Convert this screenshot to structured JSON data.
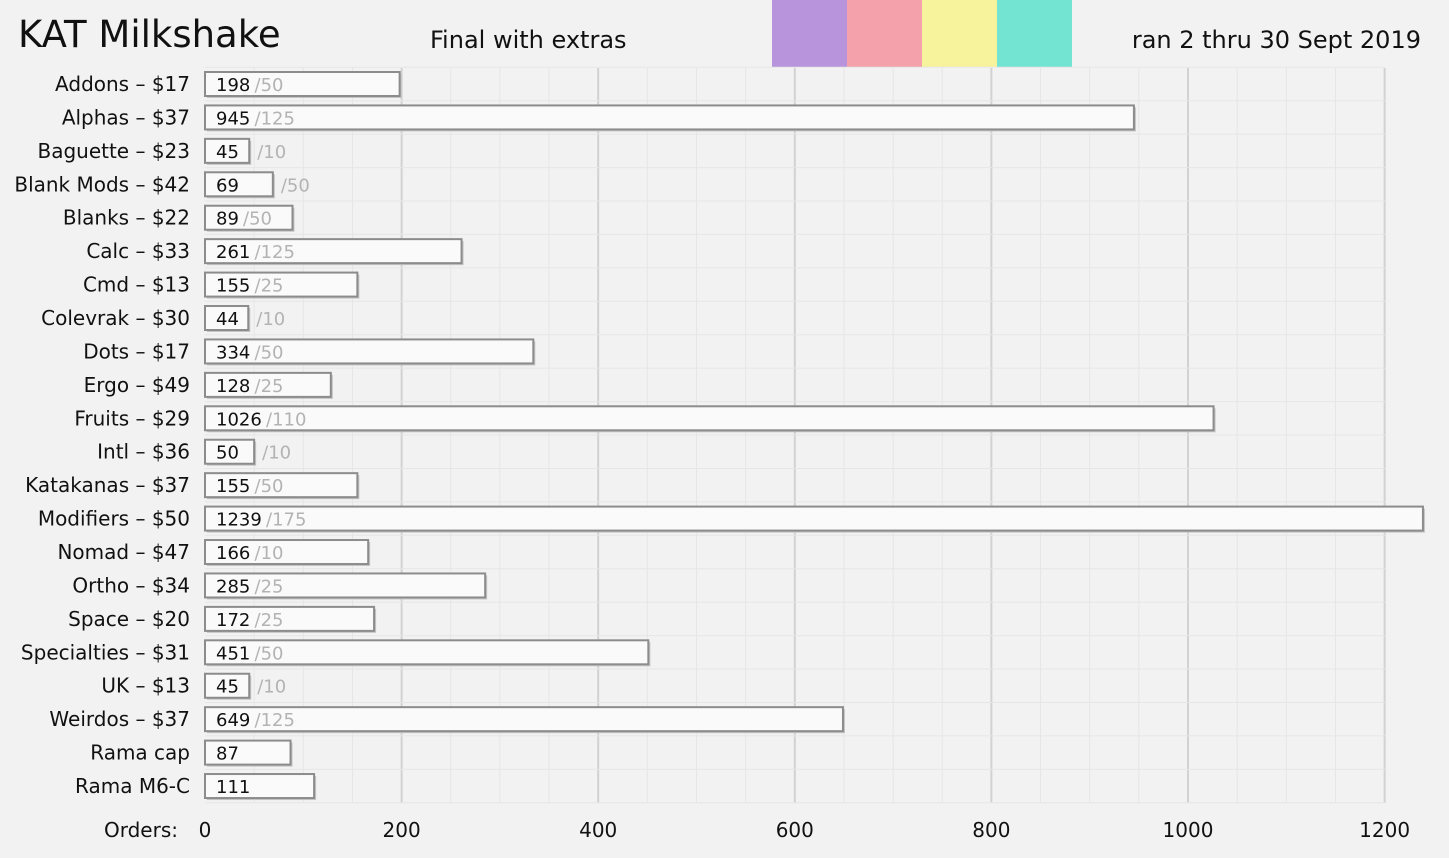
{
  "header": {
    "title": "KAT Milkshake",
    "subtitle": "Final with extras",
    "date_range": "ran 2 thru 30 Sept 2019",
    "swatches": [
      "#b794db",
      "#f4a1ab",
      "#f7f39d",
      "#74e4d2"
    ]
  },
  "chart_data": {
    "type": "bar",
    "orientation": "horizontal",
    "title": "KAT Milkshake",
    "subtitle": "Final with extras",
    "xlabel": "Orders:",
    "xlim": [
      0,
      1250
    ],
    "xticks": [
      0,
      200,
      400,
      600,
      800,
      1000,
      1200
    ],
    "grid": true,
    "categories": [
      "Addons – $17",
      "Alphas – $37",
      "Baguette – $23",
      "Blank Mods – $42",
      "Blanks – $22",
      "Calc – $33",
      "Cmd – $13",
      "Colevrak – $30",
      "Dots – $17",
      "Ergo – $49",
      "Fruits – $29",
      "Intl – $36",
      "Katakanas – $37",
      "Modifiers – $50",
      "Nomad – $47",
      "Ortho – $34",
      "Space – $20",
      "Specialties – $31",
      "UK – $13",
      "Weirdos – $37",
      "Rama cap",
      "Rama M6-C"
    ],
    "values": [
      198,
      945,
      45,
      69,
      89,
      261,
      155,
      44,
      334,
      128,
      1026,
      50,
      155,
      1239,
      166,
      285,
      172,
      451,
      45,
      649,
      87,
      111
    ],
    "minimums": [
      "/50",
      "/125",
      "/10",
      "/50",
      "/50",
      "/125",
      "/25",
      "/10",
      "/50",
      "/25",
      "/110",
      "/10",
      "/50",
      "/175",
      "/10",
      "/25",
      "/25",
      "/50",
      "/10",
      "/125",
      "",
      ""
    ]
  }
}
